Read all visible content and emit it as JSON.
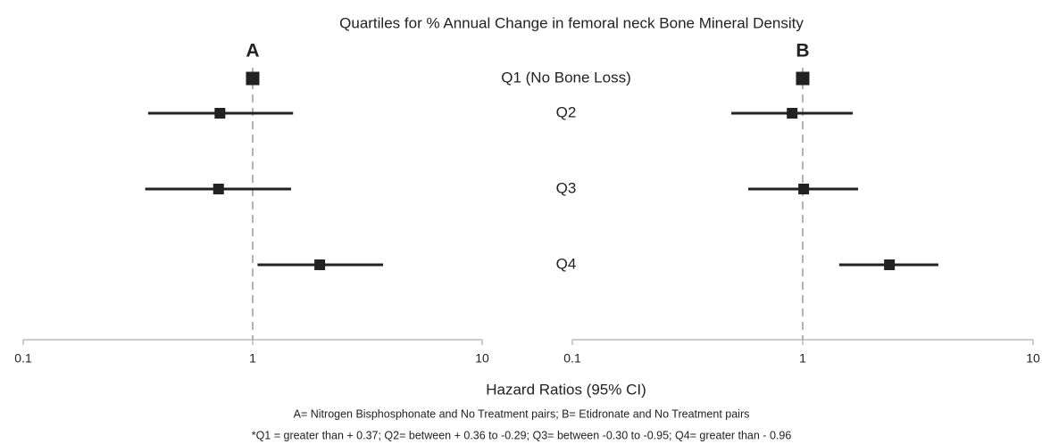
{
  "title": "Quartiles for % Annual Change in femoral neck Bone Mineral Density",
  "categories": [
    "Q1 (No Bone Loss)",
    "Q2",
    "Q3",
    "Q4"
  ],
  "xlabel": "Hazard Ratios (95% CI)",
  "notes": [
    "A= Nitrogen Bisphosphonate and No Treatment pairs; B= Etidronate and No Treatment pairs",
    "*Q1 = greater than + 0.37; Q2= between + 0.36 to -0.29; Q3= between -0.30 to -0.95; Q4= greater than - 0.96"
  ],
  "chart_data": [
    {
      "type": "forest",
      "title": "A",
      "log": true,
      "xlim": [
        0.1,
        10
      ],
      "xticks": [
        0.1,
        1,
        10
      ],
      "reference": 1,
      "color": "#222222",
      "values": [
        1,
        0.72,
        0.71,
        1.96
      ],
      "lower": [
        null,
        0.35,
        0.34,
        1.05
      ],
      "upper": [
        null,
        1.5,
        1.47,
        3.7
      ]
    },
    {
      "type": "forest",
      "title": "B",
      "log": true,
      "xlim": [
        0.1,
        10
      ],
      "xticks": [
        0.1,
        1,
        10
      ],
      "reference": 1,
      "color": "#222222",
      "values": [
        1,
        0.9,
        1.01,
        2.38
      ],
      "lower": [
        null,
        0.49,
        0.58,
        1.44
      ],
      "upper": [
        null,
        1.65,
        1.74,
        3.88
      ]
    }
  ]
}
